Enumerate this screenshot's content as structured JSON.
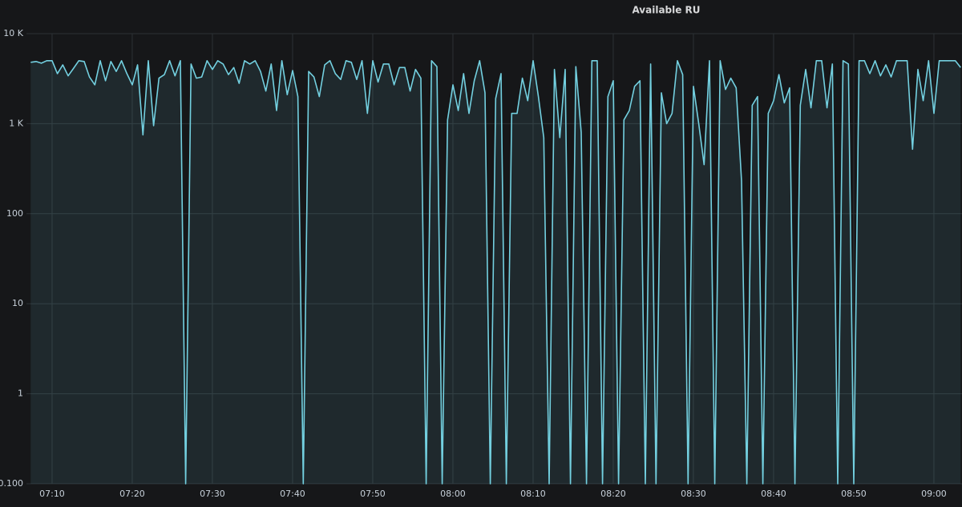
{
  "chart_data": {
    "type": "line",
    "title": "Available RU",
    "log_scale": true,
    "grid": true,
    "categories": [
      null,
      null,
      null,
      null,
      "07:10",
      null,
      null,
      null,
      null,
      null,
      null,
      null,
      null,
      null,
      null,
      null,
      null,
      null,
      null,
      "07:20",
      null,
      null,
      null,
      null,
      null,
      null,
      null,
      null,
      null,
      null,
      null,
      null,
      null,
      null,
      "07:30",
      null,
      null,
      null,
      null,
      null,
      null,
      null,
      null,
      null,
      null,
      null,
      null,
      null,
      null,
      "07:40",
      null,
      null,
      null,
      null,
      null,
      null,
      null,
      null,
      null,
      null,
      null,
      null,
      null,
      null,
      "07:50",
      null,
      null,
      null,
      null,
      null,
      null,
      null,
      null,
      null,
      null,
      null,
      null,
      null,
      null,
      "08:00",
      null,
      null,
      null,
      null,
      null,
      null,
      null,
      null,
      null,
      null,
      null,
      null,
      null,
      null,
      "08:10",
      null,
      null,
      null,
      null,
      null,
      null,
      null,
      null,
      null,
      null,
      null,
      null,
      null,
      null,
      "08:20",
      null,
      null,
      null,
      null,
      null,
      null,
      null,
      null,
      null,
      null,
      null,
      null,
      null,
      null,
      "08:30",
      null,
      null,
      null,
      null,
      null,
      null,
      null,
      null,
      null,
      null,
      null,
      null,
      null,
      null,
      "08:40",
      null,
      null,
      null,
      null,
      null,
      null,
      null,
      null,
      null,
      null,
      null,
      null,
      null,
      null,
      "08:50",
      null,
      null,
      null,
      null,
      null,
      null,
      null,
      null,
      null,
      null,
      null,
      null,
      null,
      null,
      "09:00",
      null,
      null,
      null,
      null,
      null
    ],
    "series": [
      {
        "color": "#73d0e0",
        "values": [
          4800,
          4900,
          4700,
          5000,
          5000,
          3600,
          4500,
          3400,
          4100,
          5000,
          4900,
          3300,
          2700,
          5000,
          3000,
          4900,
          3800,
          5000,
          3600,
          2700,
          4500,
          750,
          5000,
          950,
          3200,
          3500,
          5000,
          3400,
          5000,
          0.1,
          4600,
          3200,
          3300,
          5000,
          4000,
          5000,
          4600,
          3500,
          4200,
          2800,
          5000,
          4600,
          5000,
          3800,
          2300,
          4600,
          1400,
          5000,
          2100,
          3900,
          2000,
          0.1,
          3800,
          3300,
          2000,
          4500,
          5000,
          3600,
          3100,
          5000,
          4800,
          3100,
          5000,
          1300,
          5000,
          2900,
          4600,
          4600,
          2700,
          4200,
          4200,
          2300,
          4000,
          3200,
          0.1,
          5000,
          4300,
          0.1,
          1100,
          2700,
          1400,
          3600,
          1300,
          3000,
          5000,
          2200,
          0.1,
          1900,
          3600,
          0.1,
          1300,
          1300,
          3200,
          1800,
          5000,
          2000,
          700,
          0.1,
          4000,
          700,
          4000,
          0.1,
          4300,
          800,
          0.1,
          5000,
          5000,
          0.1,
          2000,
          3000,
          0.1,
          1100,
          1400,
          2600,
          3000,
          0.1,
          4600,
          0.1,
          2200,
          1000,
          1300,
          5000,
          3500,
          0.1,
          2600,
          1000,
          350,
          5000,
          0.1,
          5000,
          2400,
          3200,
          2500,
          230,
          0.1,
          1600,
          2000,
          0.1,
          1300,
          1800,
          3500,
          1700,
          2500,
          0.1,
          1600,
          4000,
          1500,
          5000,
          5000,
          1500,
          4600,
          0.1,
          5000,
          4600,
          0.1,
          5000,
          5000,
          3600,
          5000,
          3400,
          4500,
          3300,
          5000,
          5000,
          5000,
          520,
          4000,
          1800,
          5000,
          1300,
          5000,
          5000,
          5000,
          5000,
          4200
        ]
      }
    ],
    "ylim": [
      0.1,
      10000
    ],
    "yticks": [
      {
        "value": 0.1,
        "label": "0.100"
      },
      1,
      10,
      100,
      {
        "value": 1000,
        "label": "1 K"
      },
      {
        "value": 10000,
        "label": "10 K"
      }
    ]
  }
}
